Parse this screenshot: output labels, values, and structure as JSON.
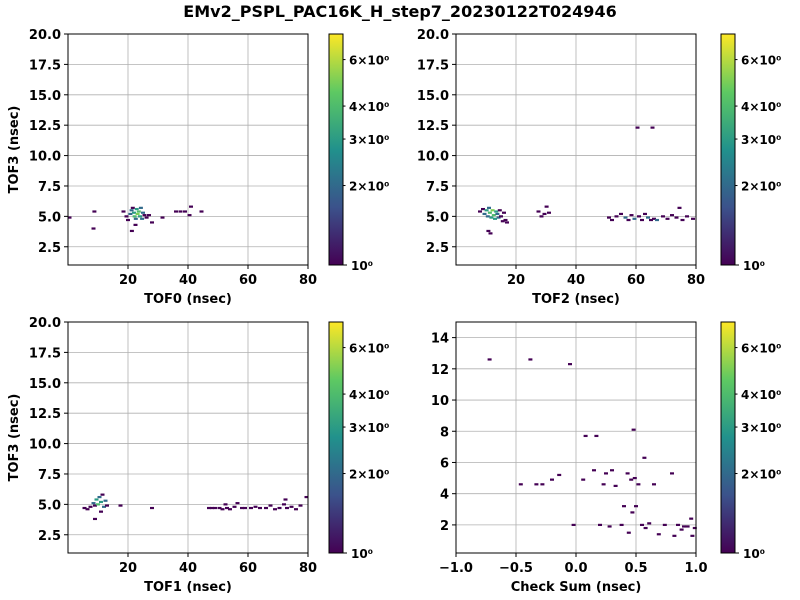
{
  "figure": {
    "title": "EMv2_PSPL_PAC16K_H_step7_20230122T024946"
  },
  "colorbar": {
    "scale": "log",
    "range": [
      1,
      7.5
    ],
    "major_ticks": [
      {
        "value": 1,
        "label": "10⁰"
      }
    ],
    "minor_ticks": [
      {
        "value": 2,
        "label": "2×10⁰"
      },
      {
        "value": 3,
        "label": "3×10⁰"
      },
      {
        "value": 4,
        "label": "4×10⁰"
      },
      {
        "value": 6,
        "label": "6×10⁰"
      }
    ],
    "colormap": "viridis",
    "colors": [
      "#440154",
      "#3b528b",
      "#21918c",
      "#5ec962",
      "#fde725"
    ]
  },
  "chart_data": [
    {
      "type": "heatmap",
      "xlabel": "TOF0 (nsec)",
      "ylabel": "TOF3 (nsec)",
      "xlim": [
        0,
        80
      ],
      "ylim": [
        1,
        20
      ],
      "xticks": [
        20,
        40,
        60,
        80
      ],
      "yticks": [
        2.5,
        5.0,
        7.5,
        10.0,
        12.5,
        15.0,
        17.5,
        20.0
      ],
      "ytick_labels": [
        "2.5",
        "5.0",
        "7.5",
        "10.0",
        "12.5",
        "15.0",
        "17.5",
        "20.0"
      ],
      "grid": true,
      "points": [
        [
          0.5,
          4.9,
          1
        ],
        [
          8.5,
          4.0,
          1
        ],
        [
          8.8,
          5.4,
          1
        ],
        [
          18.5,
          5.4,
          1
        ],
        [
          19.5,
          5.0,
          1
        ],
        [
          20.0,
          4.7,
          1
        ],
        [
          20.8,
          5.2,
          2
        ],
        [
          21.2,
          5.5,
          2
        ],
        [
          21.6,
          5.7,
          1
        ],
        [
          22.0,
          5.3,
          3
        ],
        [
          22.2,
          5.0,
          4
        ],
        [
          22.6,
          4.8,
          2
        ],
        [
          22.9,
          5.6,
          3
        ],
        [
          23.2,
          5.2,
          5
        ],
        [
          23.6,
          5.4,
          4
        ],
        [
          24.0,
          5.0,
          3
        ],
        [
          24.3,
          5.7,
          2
        ],
        [
          24.7,
          4.8,
          2
        ],
        [
          25.0,
          5.3,
          2
        ],
        [
          25.5,
          5.1,
          1
        ],
        [
          21.3,
          3.8,
          1
        ],
        [
          22.5,
          4.3,
          1
        ],
        [
          26.2,
          4.9,
          1
        ],
        [
          27.0,
          5.1,
          1
        ],
        [
          28.0,
          4.5,
          1
        ],
        [
          31.5,
          4.9,
          1
        ],
        [
          36.0,
          5.4,
          1
        ],
        [
          37.5,
          5.4,
          1
        ],
        [
          39.0,
          5.4,
          1
        ],
        [
          40.5,
          5.1,
          1
        ],
        [
          41.0,
          5.8,
          1
        ],
        [
          44.5,
          5.4,
          1
        ]
      ]
    },
    {
      "type": "heatmap",
      "xlabel": "TOF2 (nsec)",
      "ylabel": "",
      "xlim": [
        0,
        80
      ],
      "ylim": [
        1,
        20
      ],
      "xticks": [
        20,
        40,
        60,
        80
      ],
      "yticks": [
        2.5,
        5.0,
        7.5,
        10.0,
        12.5,
        15.0,
        17.5,
        20.0
      ],
      "ytick_labels": [
        "2.5",
        "5.0",
        "7.5",
        "10.0",
        "12.5",
        "15.0",
        "17.5",
        "20.0"
      ],
      "grid": true,
      "points": [
        [
          8.0,
          5.4,
          1
        ],
        [
          9.0,
          5.6,
          1
        ],
        [
          9.5,
          5.2,
          2
        ],
        [
          10.2,
          5.5,
          3
        ],
        [
          10.6,
          5.0,
          2
        ],
        [
          11.0,
          5.7,
          2
        ],
        [
          11.3,
          5.3,
          4
        ],
        [
          11.8,
          4.9,
          3
        ],
        [
          12.2,
          5.5,
          5
        ],
        [
          12.6,
          5.1,
          4
        ],
        [
          13.0,
          4.8,
          3
        ],
        [
          13.4,
          5.4,
          3
        ],
        [
          13.8,
          5.2,
          2
        ],
        [
          14.2,
          4.9,
          2
        ],
        [
          14.6,
          5.5,
          1
        ],
        [
          15.0,
          5.0,
          1
        ],
        [
          15.6,
          4.6,
          1
        ],
        [
          16.0,
          5.3,
          1
        ],
        [
          16.5,
          4.7,
          1
        ],
        [
          17.0,
          4.5,
          1
        ],
        [
          10.8,
          3.8,
          1
        ],
        [
          11.5,
          3.6,
          1
        ],
        [
          27.5,
          5.4,
          1
        ],
        [
          28.5,
          5.0,
          1
        ],
        [
          29.5,
          5.2,
          1
        ],
        [
          30.2,
          5.8,
          1
        ],
        [
          31.0,
          5.3,
          1
        ],
        [
          51.0,
          4.9,
          1
        ],
        [
          52.0,
          4.7,
          1
        ],
        [
          53.5,
          5.0,
          1
        ],
        [
          55.0,
          5.2,
          1
        ],
        [
          56.5,
          4.9,
          2
        ],
        [
          57.5,
          4.7,
          1
        ],
        [
          58.5,
          5.1,
          1
        ],
        [
          59.5,
          4.8,
          2
        ],
        [
          61.0,
          5.0,
          1
        ],
        [
          62.0,
          4.7,
          1
        ],
        [
          63.0,
          5.2,
          1
        ],
        [
          64.0,
          4.9,
          2
        ],
        [
          65.0,
          4.7,
          1
        ],
        [
          66.0,
          4.8,
          1
        ],
        [
          67.0,
          4.7,
          2
        ],
        [
          69.0,
          5.0,
          1
        ],
        [
          70.5,
          4.8,
          1
        ],
        [
          72.0,
          5.1,
          1
        ],
        [
          73.5,
          4.9,
          1
        ],
        [
          74.5,
          5.7,
          1
        ],
        [
          75.5,
          4.7,
          1
        ],
        [
          77.0,
          5.0,
          1
        ],
        [
          79.0,
          4.8,
          1
        ],
        [
          60.5,
          12.3,
          1
        ],
        [
          65.5,
          12.3,
          1
        ]
      ]
    },
    {
      "type": "heatmap",
      "xlabel": "TOF1 (nsec)",
      "ylabel": "TOF3 (nsec)",
      "xlim": [
        0,
        80
      ],
      "ylim": [
        1,
        20
      ],
      "xticks": [
        20,
        40,
        60,
        80
      ],
      "yticks": [
        2.5,
        5.0,
        7.5,
        10.0,
        12.5,
        15.0,
        17.5,
        20.0
      ],
      "ytick_labels": [
        "2.5",
        "5.0",
        "7.5",
        "10.0",
        "12.5",
        "15.0",
        "17.5",
        "20.0"
      ],
      "grid": true,
      "points": [
        [
          5.5,
          4.7,
          1
        ],
        [
          6.5,
          4.6,
          1
        ],
        [
          7.5,
          4.8,
          1
        ],
        [
          8.5,
          5.1,
          2
        ],
        [
          9.0,
          4.9,
          1
        ],
        [
          9.5,
          5.4,
          3
        ],
        [
          10.0,
          5.0,
          4
        ],
        [
          10.5,
          5.6,
          2
        ],
        [
          11.0,
          5.2,
          3
        ],
        [
          11.5,
          5.8,
          1
        ],
        [
          12.0,
          4.8,
          2
        ],
        [
          12.5,
          5.3,
          2
        ],
        [
          13.0,
          4.9,
          1
        ],
        [
          9.0,
          3.8,
          1
        ],
        [
          11.0,
          4.4,
          1
        ],
        [
          17.5,
          4.9,
          1
        ],
        [
          28.0,
          4.7,
          1
        ],
        [
          47.0,
          4.7,
          1
        ],
        [
          48.0,
          4.7,
          1
        ],
        [
          49.0,
          4.7,
          1
        ],
        [
          50.5,
          4.7,
          1
        ],
        [
          51.5,
          4.6,
          1
        ],
        [
          52.5,
          5.0,
          1
        ],
        [
          53.0,
          4.7,
          1
        ],
        [
          54.0,
          4.6,
          1
        ],
        [
          55.5,
          4.8,
          1
        ],
        [
          56.5,
          5.1,
          1
        ],
        [
          58.0,
          4.7,
          1
        ],
        [
          59.0,
          4.7,
          1
        ],
        [
          61.0,
          4.7,
          1
        ],
        [
          62.5,
          4.8,
          1
        ],
        [
          64.0,
          4.7,
          1
        ],
        [
          66.0,
          4.7,
          1
        ],
        [
          67.5,
          4.9,
          1
        ],
        [
          69.0,
          4.6,
          1
        ],
        [
          70.5,
          4.7,
          1
        ],
        [
          72.0,
          5.0,
          1
        ],
        [
          73.0,
          4.7,
          1
        ],
        [
          74.5,
          4.8,
          1
        ],
        [
          76.0,
          4.6,
          1
        ],
        [
          77.5,
          4.9,
          1
        ],
        [
          79.5,
          5.6,
          1
        ],
        [
          72.5,
          5.4,
          1
        ]
      ]
    },
    {
      "type": "heatmap",
      "xlabel": "Check Sum (nsec)",
      "ylabel": "",
      "xlim": [
        -1,
        1
      ],
      "ylim": [
        0.2,
        15
      ],
      "xticks": [
        -1,
        -0.5,
        0,
        0.5,
        1
      ],
      "xtick_labels": [
        "−1.0",
        "−0.5",
        "0.0",
        "0.5",
        "1.0"
      ],
      "yticks": [
        2,
        4,
        6,
        8,
        10,
        12,
        14
      ],
      "ytick_labels": [
        "2",
        "4",
        "6",
        "8",
        "10",
        "12",
        "14"
      ],
      "grid": true,
      "points": [
        [
          -0.72,
          12.6,
          1
        ],
        [
          -0.38,
          12.6,
          1
        ],
        [
          -0.05,
          12.3,
          1
        ],
        [
          -0.46,
          4.6,
          1
        ],
        [
          -0.33,
          4.6,
          1
        ],
        [
          -0.28,
          4.6,
          1
        ],
        [
          -0.2,
          4.9,
          1
        ],
        [
          -0.14,
          5.2,
          1
        ],
        [
          -0.02,
          2.0,
          1
        ],
        [
          0.06,
          4.9,
          1
        ],
        [
          0.08,
          7.7,
          1
        ],
        [
          0.17,
          7.7,
          1
        ],
        [
          0.15,
          5.5,
          1
        ],
        [
          0.2,
          2.0,
          1
        ],
        [
          0.23,
          4.6,
          1
        ],
        [
          0.25,
          5.3,
          1
        ],
        [
          0.28,
          1.9,
          1
        ],
        [
          0.3,
          5.5,
          1
        ],
        [
          0.33,
          4.5,
          1
        ],
        [
          0.38,
          2.0,
          1
        ],
        [
          0.4,
          3.2,
          1
        ],
        [
          0.43,
          5.3,
          1
        ],
        [
          0.44,
          1.5,
          1
        ],
        [
          0.46,
          4.9,
          1
        ],
        [
          0.47,
          2.8,
          1
        ],
        [
          0.48,
          8.1,
          1
        ],
        [
          0.49,
          5.0,
          1
        ],
        [
          0.5,
          3.2,
          1
        ],
        [
          0.52,
          4.6,
          1
        ],
        [
          0.55,
          2.0,
          1
        ],
        [
          0.57,
          6.3,
          1
        ],
        [
          0.58,
          1.8,
          1
        ],
        [
          0.61,
          2.1,
          1
        ],
        [
          0.65,
          4.6,
          1
        ],
        [
          0.69,
          1.4,
          1
        ],
        [
          0.74,
          2.0,
          1
        ],
        [
          0.8,
          5.3,
          1
        ],
        [
          0.82,
          1.3,
          1
        ],
        [
          0.85,
          2.0,
          1
        ],
        [
          0.88,
          1.7,
          1
        ],
        [
          0.93,
          1.9,
          1
        ],
        [
          0.96,
          2.4,
          1
        ],
        [
          0.97,
          1.3,
          1
        ],
        [
          0.99,
          1.8,
          1
        ],
        [
          0.9,
          1.9,
          1
        ]
      ]
    }
  ]
}
